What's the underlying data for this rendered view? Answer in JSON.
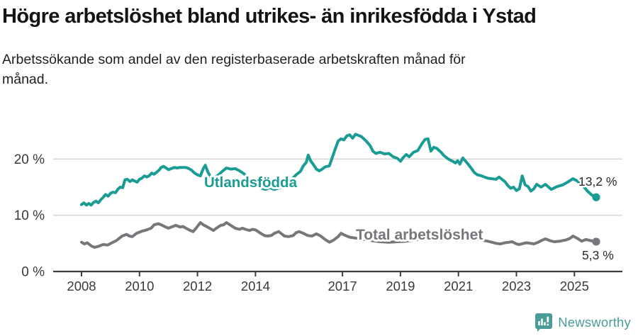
{
  "header": {
    "title": "Högre arbetslöshet bland utrikes- än inrikesfödda i Ystad",
    "subtitle": "Arbetssökande som andel av den registerbaserade arbetskraften månad för månad."
  },
  "footer": {
    "brand": "Newsworthy"
  },
  "colors": {
    "utlandsfodda": "#199c94",
    "total": "#76767b",
    "grid": "#d9d9d9",
    "axis": "#3d3d3d",
    "axis_text": "#3a3a3a",
    "value_text": "#28282c",
    "logo_teal": "#4a9c99"
  },
  "chart_data": {
    "type": "line",
    "title": "Högre arbetslöshet bland utrikes- än inrikesfödda i Ystad",
    "subtitle": "Arbetssökande som andel av den registerbaserade arbetskraften månad för månad.",
    "xlabel": "",
    "ylabel": "",
    "ylim": [
      0,
      25.5
    ],
    "xlim": [
      2007.3,
      2026.0
    ],
    "grid": "horizontal",
    "legend": "inline-labels",
    "yticks": [
      {
        "value": 0,
        "label": "0 %"
      },
      {
        "value": 10,
        "label": "10 %"
      },
      {
        "value": 20,
        "label": "20 %"
      }
    ],
    "xticks": [
      {
        "year": 2008,
        "label": "2008"
      },
      {
        "year": 2010,
        "label": "2010"
      },
      {
        "year": 2012,
        "label": "2012"
      },
      {
        "year": 2014,
        "label": "2014"
      },
      {
        "year": 2017,
        "label": "2017"
      },
      {
        "year": 2019,
        "label": "2019"
      },
      {
        "year": 2021,
        "label": "2021"
      },
      {
        "year": 2023,
        "label": "2023"
      },
      {
        "year": 2025,
        "label": "2025"
      }
    ],
    "series": [
      {
        "id": "utlandsfodda",
        "name": "Utlandsfödda",
        "color": "#199c94",
        "end_value": 13.2,
        "end_label": "13,2 %",
        "points": [
          [
            2008.0,
            11.9
          ],
          [
            2008.08,
            12.2
          ],
          [
            2008.17,
            11.8
          ],
          [
            2008.25,
            12.1
          ],
          [
            2008.33,
            11.8
          ],
          [
            2008.42,
            12.3
          ],
          [
            2008.5,
            12.5
          ],
          [
            2008.58,
            12.2
          ],
          [
            2008.67,
            12.8
          ],
          [
            2008.75,
            13.2
          ],
          [
            2008.83,
            13.7
          ],
          [
            2008.92,
            13.4
          ],
          [
            2009.0,
            13.9
          ],
          [
            2009.08,
            14.1
          ],
          [
            2009.17,
            14.0
          ],
          [
            2009.25,
            14.6
          ],
          [
            2009.33,
            15.0
          ],
          [
            2009.42,
            14.9
          ],
          [
            2009.5,
            16.3
          ],
          [
            2009.58,
            16.4
          ],
          [
            2009.67,
            16.0
          ],
          [
            2009.75,
            16.3
          ],
          [
            2009.83,
            16.1
          ],
          [
            2009.92,
            15.9
          ],
          [
            2010.0,
            16.4
          ],
          [
            2010.08,
            16.6
          ],
          [
            2010.17,
            17.0
          ],
          [
            2010.25,
            16.8
          ],
          [
            2010.33,
            17.0
          ],
          [
            2010.42,
            17.5
          ],
          [
            2010.5,
            17.3
          ],
          [
            2010.58,
            17.6
          ],
          [
            2010.67,
            18.0
          ],
          [
            2010.75,
            18.5
          ],
          [
            2010.83,
            18.7
          ],
          [
            2010.92,
            18.4
          ],
          [
            2011.0,
            18.1
          ],
          [
            2011.1,
            18.3
          ],
          [
            2011.2,
            18.5
          ],
          [
            2011.3,
            18.4
          ],
          [
            2011.4,
            18.5
          ],
          [
            2011.5,
            18.5
          ],
          [
            2011.6,
            18.5
          ],
          [
            2011.7,
            18.3
          ],
          [
            2011.8,
            18.0
          ],
          [
            2011.9,
            17.5
          ],
          [
            2012.0,
            17.2
          ],
          [
            2012.1,
            17.0
          ],
          [
            2012.2,
            18.3
          ],
          [
            2012.27,
            18.9
          ],
          [
            2012.35,
            17.8
          ],
          [
            2012.45,
            16.8
          ],
          [
            2012.55,
            16.5
          ],
          [
            2012.65,
            16.9
          ],
          [
            2012.75,
            17.3
          ],
          [
            2012.85,
            17.8
          ],
          [
            2013.0,
            18.4
          ],
          [
            2013.15,
            18.2
          ],
          [
            2013.3,
            18.3
          ],
          [
            2013.45,
            17.9
          ],
          [
            2013.6,
            17.4
          ],
          [
            2013.75,
            16.6
          ],
          [
            2013.9,
            15.8
          ],
          [
            2014.05,
            15.2
          ],
          [
            2014.2,
            14.8
          ],
          [
            2014.35,
            14.6
          ],
          [
            2014.5,
            14.9
          ],
          [
            2014.65,
            14.6
          ],
          [
            2014.8,
            14.8
          ],
          [
            2014.95,
            15.1
          ],
          [
            2015.1,
            15.7
          ],
          [
            2015.25,
            16.4
          ],
          [
            2015.4,
            17.2
          ],
          [
            2015.55,
            17.8
          ],
          [
            2015.65,
            18.8
          ],
          [
            2015.75,
            19.4
          ],
          [
            2015.82,
            20.7
          ],
          [
            2015.9,
            19.7
          ],
          [
            2016.0,
            19.0
          ],
          [
            2016.1,
            18.2
          ],
          [
            2016.2,
            17.9
          ],
          [
            2016.3,
            18.2
          ],
          [
            2016.4,
            18.6
          ],
          [
            2016.55,
            18.8
          ],
          [
            2016.65,
            20.3
          ],
          [
            2016.75,
            21.8
          ],
          [
            2016.85,
            23.2
          ],
          [
            2016.95,
            23.6
          ],
          [
            2017.05,
            23.4
          ],
          [
            2017.15,
            24.1
          ],
          [
            2017.25,
            24.3
          ],
          [
            2017.35,
            23.7
          ],
          [
            2017.45,
            24.4
          ],
          [
            2017.55,
            24.2
          ],
          [
            2017.65,
            24.0
          ],
          [
            2017.8,
            23.3
          ],
          [
            2017.95,
            22.4
          ],
          [
            2018.05,
            21.4
          ],
          [
            2018.15,
            21.0
          ],
          [
            2018.3,
            21.2
          ],
          [
            2018.45,
            20.9
          ],
          [
            2018.6,
            21.0
          ],
          [
            2018.75,
            20.4
          ],
          [
            2018.9,
            20.1
          ],
          [
            2019.0,
            19.6
          ],
          [
            2019.1,
            20.3
          ],
          [
            2019.2,
            20.8
          ],
          [
            2019.3,
            20.4
          ],
          [
            2019.45,
            21.2
          ],
          [
            2019.6,
            21.5
          ],
          [
            2019.75,
            22.8
          ],
          [
            2019.85,
            23.5
          ],
          [
            2019.95,
            23.6
          ],
          [
            2020.05,
            21.4
          ],
          [
            2020.15,
            22.1
          ],
          [
            2020.25,
            21.9
          ],
          [
            2020.4,
            21.2
          ],
          [
            2020.5,
            20.6
          ],
          [
            2020.65,
            20.0
          ],
          [
            2020.8,
            19.6
          ],
          [
            2020.9,
            19.3
          ],
          [
            2020.97,
            19.7
          ],
          [
            2021.05,
            19.1
          ],
          [
            2021.15,
            20.2
          ],
          [
            2021.3,
            19.3
          ],
          [
            2021.45,
            18.3
          ],
          [
            2021.55,
            17.6
          ],
          [
            2021.65,
            17.2
          ],
          [
            2021.8,
            17.0
          ],
          [
            2021.9,
            16.8
          ],
          [
            2022.0,
            16.6
          ],
          [
            2022.15,
            16.5
          ],
          [
            2022.3,
            16.4
          ],
          [
            2022.4,
            16.8
          ],
          [
            2022.5,
            16.4
          ],
          [
            2022.6,
            16.0
          ],
          [
            2022.7,
            15.3
          ],
          [
            2022.8,
            14.8
          ],
          [
            2022.9,
            15.0
          ],
          [
            2023.0,
            14.4
          ],
          [
            2023.1,
            14.7
          ],
          [
            2023.2,
            17.0
          ],
          [
            2023.3,
            15.4
          ],
          [
            2023.4,
            15.1
          ],
          [
            2023.5,
            14.3
          ],
          [
            2023.6,
            14.7
          ],
          [
            2023.7,
            15.5
          ],
          [
            2023.85,
            15.0
          ],
          [
            2024.0,
            15.5
          ],
          [
            2024.2,
            14.6
          ],
          [
            2024.4,
            15.1
          ],
          [
            2024.6,
            15.4
          ],
          [
            2024.8,
            16.0
          ],
          [
            2024.95,
            16.5
          ],
          [
            2025.1,
            16.1
          ],
          [
            2025.3,
            15.2
          ],
          [
            2025.45,
            14.3
          ],
          [
            2025.6,
            13.6
          ],
          [
            2025.75,
            13.2
          ]
        ]
      },
      {
        "id": "total",
        "name": "Total arbetslöshet",
        "color": "#76767b",
        "end_value": 5.3,
        "end_label": "5,3 %",
        "points": [
          [
            2008.0,
            5.2
          ],
          [
            2008.1,
            4.9
          ],
          [
            2008.2,
            5.1
          ],
          [
            2008.35,
            4.5
          ],
          [
            2008.45,
            4.3
          ],
          [
            2008.6,
            4.5
          ],
          [
            2008.75,
            4.8
          ],
          [
            2008.9,
            4.7
          ],
          [
            2009.05,
            5.1
          ],
          [
            2009.2,
            5.5
          ],
          [
            2009.3,
            5.9
          ],
          [
            2009.4,
            6.3
          ],
          [
            2009.55,
            6.6
          ],
          [
            2009.65,
            6.3
          ],
          [
            2009.75,
            6.2
          ],
          [
            2009.9,
            6.8
          ],
          [
            2010.0,
            7.0
          ],
          [
            2010.1,
            7.2
          ],
          [
            2010.25,
            7.4
          ],
          [
            2010.4,
            7.7
          ],
          [
            2010.5,
            8.3
          ],
          [
            2010.65,
            8.5
          ],
          [
            2010.75,
            8.3
          ],
          [
            2010.9,
            7.9
          ],
          [
            2011.0,
            7.7
          ],
          [
            2011.15,
            8.0
          ],
          [
            2011.25,
            8.2
          ],
          [
            2011.4,
            7.9
          ],
          [
            2011.5,
            8.0
          ],
          [
            2011.6,
            7.7
          ],
          [
            2011.75,
            7.3
          ],
          [
            2011.85,
            7.1
          ],
          [
            2011.95,
            7.7
          ],
          [
            2012.1,
            8.7
          ],
          [
            2012.2,
            8.3
          ],
          [
            2012.35,
            7.9
          ],
          [
            2012.45,
            7.6
          ],
          [
            2012.55,
            7.3
          ],
          [
            2012.65,
            7.7
          ],
          [
            2012.8,
            8.2
          ],
          [
            2012.9,
            8.3
          ],
          [
            2013.0,
            8.7
          ],
          [
            2013.15,
            8.2
          ],
          [
            2013.3,
            7.7
          ],
          [
            2013.45,
            7.5
          ],
          [
            2013.55,
            7.7
          ],
          [
            2013.65,
            7.5
          ],
          [
            2013.8,
            7.3
          ],
          [
            2013.9,
            7.5
          ],
          [
            2014.0,
            7.4
          ],
          [
            2014.15,
            6.9
          ],
          [
            2014.3,
            6.4
          ],
          [
            2014.4,
            6.3
          ],
          [
            2014.55,
            6.4
          ],
          [
            2014.65,
            6.8
          ],
          [
            2014.8,
            7.1
          ],
          [
            2014.9,
            6.7
          ],
          [
            2015.0,
            6.3
          ],
          [
            2015.15,
            6.2
          ],
          [
            2015.3,
            6.4
          ],
          [
            2015.4,
            6.9
          ],
          [
            2015.5,
            7.1
          ],
          [
            2015.65,
            6.8
          ],
          [
            2015.8,
            6.4
          ],
          [
            2015.95,
            6.3
          ],
          [
            2016.1,
            6.7
          ],
          [
            2016.25,
            6.3
          ],
          [
            2016.4,
            5.7
          ],
          [
            2016.55,
            5.2
          ],
          [
            2016.7,
            5.6
          ],
          [
            2016.85,
            6.2
          ],
          [
            2016.95,
            6.8
          ],
          [
            2017.1,
            6.4
          ],
          [
            2017.25,
            6.1
          ],
          [
            2017.5,
            5.9
          ],
          [
            2017.75,
            5.7
          ],
          [
            2018.0,
            5.5
          ],
          [
            2018.3,
            5.3
          ],
          [
            2018.6,
            5.2
          ],
          [
            2018.9,
            5.3
          ],
          [
            2019.2,
            5.4
          ],
          [
            2019.5,
            5.6
          ],
          [
            2019.8,
            5.9
          ],
          [
            2020.1,
            6.6
          ],
          [
            2020.35,
            7.2
          ],
          [
            2020.6,
            7.0
          ],
          [
            2020.9,
            6.7
          ],
          [
            2021.2,
            6.3
          ],
          [
            2021.5,
            5.9
          ],
          [
            2021.8,
            5.6
          ],
          [
            2022.0,
            5.4
          ],
          [
            2022.15,
            5.2
          ],
          [
            2022.3,
            5.0
          ],
          [
            2022.45,
            4.9
          ],
          [
            2022.6,
            5.1
          ],
          [
            2022.75,
            5.2
          ],
          [
            2022.85,
            5.3
          ],
          [
            2023.0,
            4.9
          ],
          [
            2023.1,
            4.8
          ],
          [
            2023.25,
            5.0
          ],
          [
            2023.35,
            5.1
          ],
          [
            2023.5,
            5.0
          ],
          [
            2023.6,
            4.9
          ],
          [
            2023.75,
            5.2
          ],
          [
            2023.9,
            5.6
          ],
          [
            2024.0,
            5.8
          ],
          [
            2024.15,
            5.5
          ],
          [
            2024.3,
            5.3
          ],
          [
            2024.5,
            5.4
          ],
          [
            2024.7,
            5.6
          ],
          [
            2024.85,
            5.9
          ],
          [
            2024.95,
            6.3
          ],
          [
            2025.1,
            5.9
          ],
          [
            2025.25,
            5.4
          ],
          [
            2025.4,
            5.7
          ],
          [
            2025.55,
            5.5
          ],
          [
            2025.75,
            5.3
          ]
        ]
      }
    ]
  }
}
